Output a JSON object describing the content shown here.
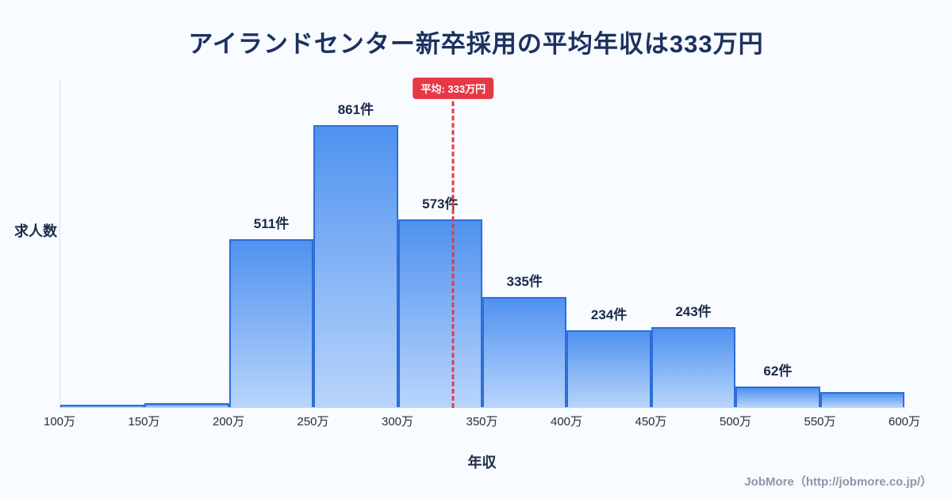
{
  "page": {
    "title": "アイランドセンター新卒採用の平均年収は333万円",
    "credit": "JobMore（http://jobmore.co.jp/）"
  },
  "chart_data": {
    "type": "bar",
    "title": "アイランドセンター新卒採用の平均年収は333万円",
    "xlabel": "年収",
    "ylabel": "求人数",
    "x_tick_labels": [
      "100万",
      "150万",
      "200万",
      "250万",
      "300万",
      "350万",
      "400万",
      "450万",
      "500万",
      "550万",
      "600万"
    ],
    "bin_edges": [
      100,
      150,
      200,
      250,
      300,
      350,
      400,
      450,
      500,
      550,
      600
    ],
    "values": [
      8,
      12,
      511,
      861,
      573,
      335,
      234,
      243,
      62,
      45
    ],
    "bar_labels": [
      "",
      "",
      "511件",
      "861件",
      "573件",
      "335件",
      "234件",
      "243件",
      "62件",
      ""
    ],
    "ylim": [
      0,
      1000
    ],
    "grid": false,
    "legend": false,
    "average": {
      "value": 333,
      "label": "平均: 333万円"
    },
    "colors": {
      "bar_top": "#4f92f0",
      "bar_bottom": "#b9d5fb",
      "bar_border": "#2e6ed8",
      "average_line": "#e63946",
      "title_text": "#1b3160",
      "background": "#f8fbff"
    }
  }
}
